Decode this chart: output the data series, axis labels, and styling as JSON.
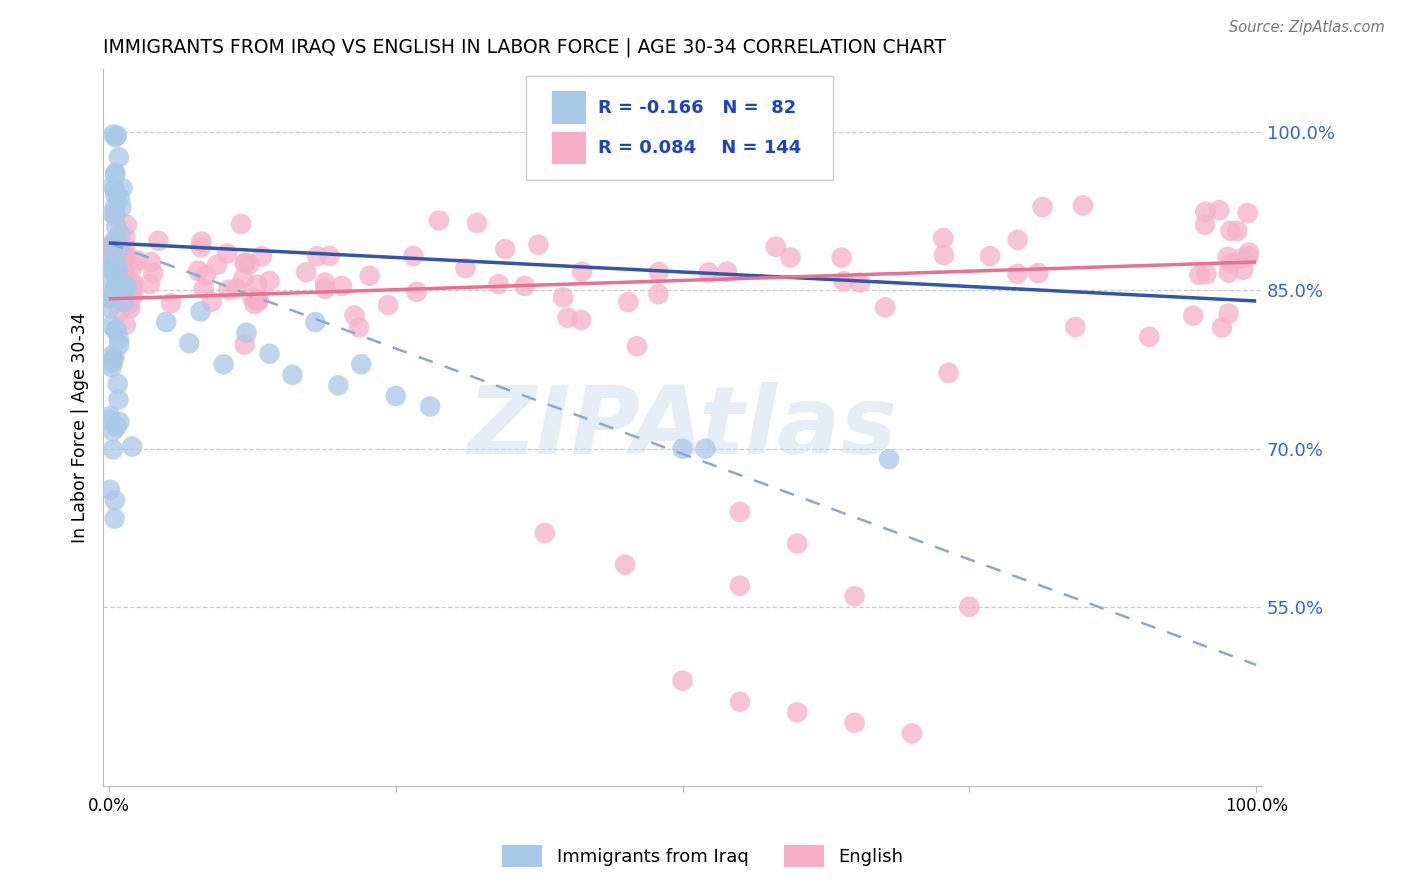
{
  "title": "IMMIGRANTS FROM IRAQ VS ENGLISH IN LABOR FORCE | AGE 30-34 CORRELATION CHART",
  "source": "Source: ZipAtlas.com",
  "ylabel": "In Labor Force | Age 30-34",
  "right_yticklabels": [
    "55.0%",
    "70.0%",
    "85.0%",
    "100.0%"
  ],
  "right_ytick_vals": [
    0.55,
    0.7,
    0.85,
    1.0
  ],
  "legend_r_iraq": "-0.166",
  "legend_n_iraq": "82",
  "legend_r_english": "0.084",
  "legend_n_english": "144",
  "watermark": "ZIPAtlas",
  "iraq_color": "#a8c8e8",
  "english_color": "#f5b0c8",
  "iraq_line_color": "#3355aa",
  "english_line_color": "#e87090",
  "dashed_line_color": "#88aacc",
  "bg_color": "#ffffff",
  "grid_color": "#cccccc",
  "ylim_lo": 0.38,
  "ylim_hi": 1.06,
  "xlim_lo": -0.005,
  "xlim_hi": 1.005
}
